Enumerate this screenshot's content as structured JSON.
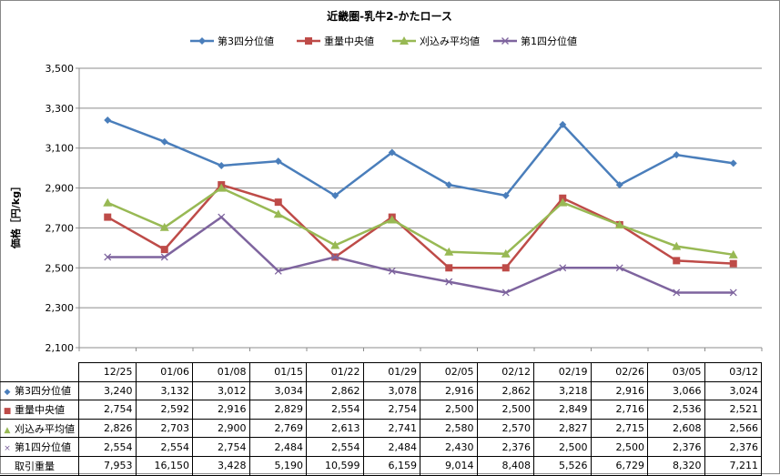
{
  "chart_data": {
    "type": "line",
    "title": "近畿圏-乳牛2-かたロース",
    "xlabel": "",
    "ylabel": "価格［円/kg］",
    "categories": [
      "12/25",
      "01/06",
      "01/08",
      "01/15",
      "01/22",
      "01/29",
      "02/05",
      "02/12",
      "02/19",
      "02/26",
      "03/05",
      "03/12"
    ],
    "ylim": [
      2100,
      3500
    ],
    "yticks": [
      2100,
      2300,
      2500,
      2700,
      2900,
      3100,
      3300,
      3500
    ],
    "ytick_labels": [
      "2,100",
      "2,300",
      "2,500",
      "2,700",
      "2,900",
      "3,100",
      "3,300",
      "3,500"
    ],
    "grid": true,
    "legend_position": "top",
    "series": [
      {
        "name": "第3四分位値",
        "color": "#4A7EBB",
        "marker": "diamond",
        "marker_glyph": "◆",
        "values": [
          3240,
          3132,
          3012,
          3034,
          2862,
          3078,
          2916,
          2862,
          3218,
          2916,
          3066,
          3024
        ],
        "display": [
          "3,240",
          "3,132",
          "3,012",
          "3,034",
          "2,862",
          "3,078",
          "2,916",
          "2,862",
          "3,218",
          "2,916",
          "3,066",
          "3,024"
        ]
      },
      {
        "name": "重量中央値",
        "color": "#BE4B48",
        "marker": "square",
        "marker_glyph": "■",
        "values": [
          2754,
          2592,
          2916,
          2829,
          2554,
          2754,
          2500,
          2500,
          2849,
          2716,
          2536,
          2521
        ],
        "display": [
          "2,754",
          "2,592",
          "2,916",
          "2,829",
          "2,554",
          "2,754",
          "2,500",
          "2,500",
          "2,849",
          "2,716",
          "2,536",
          "2,521"
        ]
      },
      {
        "name": "刈込み平均値",
        "color": "#98B954",
        "marker": "triangle",
        "marker_glyph": "▲",
        "values": [
          2826,
          2703,
          2900,
          2769,
          2613,
          2741,
          2580,
          2570,
          2827,
          2715,
          2608,
          2566
        ],
        "display": [
          "2,826",
          "2,703",
          "2,900",
          "2,769",
          "2,613",
          "2,741",
          "2,580",
          "2,570",
          "2,827",
          "2,715",
          "2,608",
          "2,566"
        ]
      },
      {
        "name": "第1四分位値",
        "color": "#7E649E",
        "marker": "x",
        "marker_glyph": "×",
        "values": [
          2554,
          2554,
          2754,
          2484,
          2554,
          2484,
          2430,
          2376,
          2500,
          2500,
          2376,
          2376
        ],
        "display": [
          "2,554",
          "2,554",
          "2,754",
          "2,484",
          "2,554",
          "2,484",
          "2,430",
          "2,376",
          "2,500",
          "2,500",
          "2,376",
          "2,376"
        ]
      }
    ],
    "table_extra_row": {
      "name": "取引重量",
      "values": [
        7953,
        16150,
        3428,
        5190,
        10599,
        6159,
        9014,
        8408,
        5526,
        6729,
        8320,
        7211
      ],
      "display": [
        "7,953",
        "16,150",
        "3,428",
        "5,190",
        "10,599",
        "6,159",
        "9,014",
        "8,408",
        "5,526",
        "6,729",
        "8,320",
        "7,211"
      ]
    }
  }
}
